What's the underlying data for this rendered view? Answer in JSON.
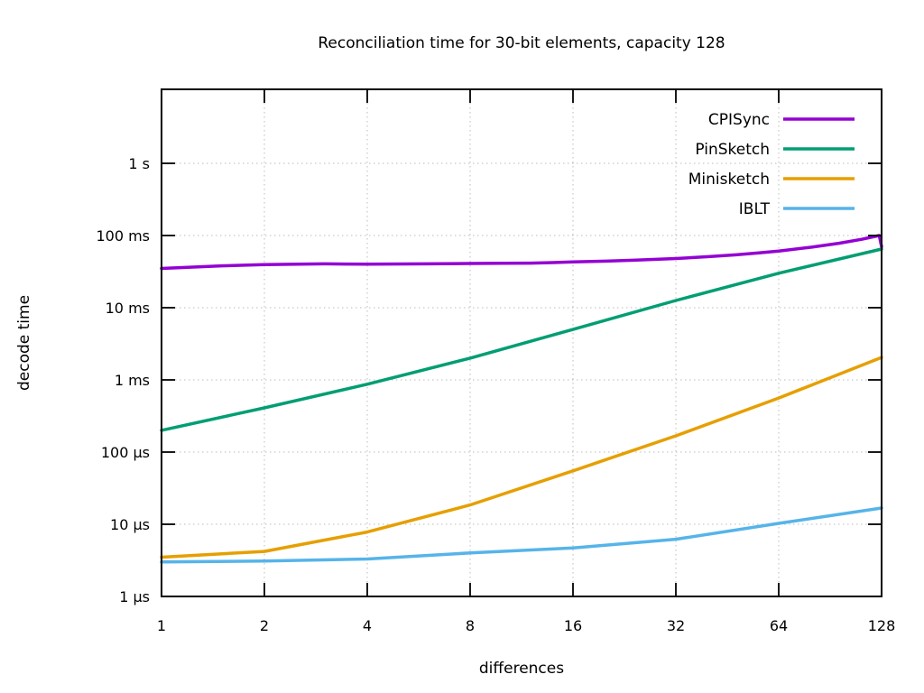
{
  "chart_data": {
    "type": "line",
    "title": "Reconciliation time for 30-bit elements, capacity 128",
    "xlabel": "differences",
    "ylabel": "decode time",
    "x_scale": "log2",
    "y_scale": "log10",
    "grid": true,
    "legend_position": "top-right-inside",
    "x_range": [
      1,
      128
    ],
    "y_range_us": [
      1,
      10000000
    ],
    "x_ticks": [
      1,
      2,
      4,
      8,
      16,
      32,
      64,
      128
    ],
    "y_ticks": [
      {
        "value_us": 1,
        "label": "1 µs"
      },
      {
        "value_us": 10,
        "label": "10 µs"
      },
      {
        "value_us": 100,
        "label": "100 µs"
      },
      {
        "value_us": 1000,
        "label": "1 ms"
      },
      {
        "value_us": 10000,
        "label": "10 ms"
      },
      {
        "value_us": 100000,
        "label": "100 ms"
      },
      {
        "value_us": 1000000,
        "label": "1 s"
      }
    ],
    "y_unit": "µs",
    "series": [
      {
        "name": "CPISync",
        "color": "#9400D3",
        "points": [
          [
            1,
            35000
          ],
          [
            1.5,
            38000
          ],
          [
            2,
            39500
          ],
          [
            3,
            40500
          ],
          [
            4,
            40000
          ],
          [
            6,
            40500
          ],
          [
            8,
            41000
          ],
          [
            10,
            41300
          ],
          [
            12,
            41500
          ],
          [
            14,
            42200
          ],
          [
            16,
            43000
          ],
          [
            20,
            44200
          ],
          [
            24,
            45500
          ],
          [
            28,
            46800
          ],
          [
            32,
            48000
          ],
          [
            40,
            51000
          ],
          [
            48,
            54000
          ],
          [
            56,
            57500
          ],
          [
            64,
            61000
          ],
          [
            80,
            69000
          ],
          [
            96,
            78000
          ],
          [
            112,
            88500
          ],
          [
            126,
            100000
          ],
          [
            128,
            70000
          ]
        ]
      },
      {
        "name": "PinSketch",
        "color": "#009E73",
        "points": [
          [
            1,
            200
          ],
          [
            2,
            410
          ],
          [
            4,
            870
          ],
          [
            8,
            2000
          ],
          [
            16,
            5000
          ],
          [
            32,
            12600
          ],
          [
            64,
            30000
          ],
          [
            128,
            65000
          ]
        ]
      },
      {
        "name": "Minisketch",
        "color": "#E69F00",
        "points": [
          [
            1,
            3.5
          ],
          [
            2,
            4.2
          ],
          [
            4,
            7.8
          ],
          [
            8,
            18.5
          ],
          [
            16,
            55
          ],
          [
            32,
            168
          ],
          [
            64,
            560
          ],
          [
            128,
            2050
          ]
        ]
      },
      {
        "name": "IBLT",
        "color": "#56B4E9",
        "points": [
          [
            1,
            3.0
          ],
          [
            2,
            3.1
          ],
          [
            4,
            3.3
          ],
          [
            8,
            4.0
          ],
          [
            16,
            4.7
          ],
          [
            32,
            6.2
          ],
          [
            64,
            10.3
          ],
          [
            128,
            16.8
          ]
        ]
      }
    ]
  },
  "colors": {
    "background": "#ffffff",
    "axis": "#000000",
    "grid": "#bbbbbb",
    "text": "#000000"
  }
}
